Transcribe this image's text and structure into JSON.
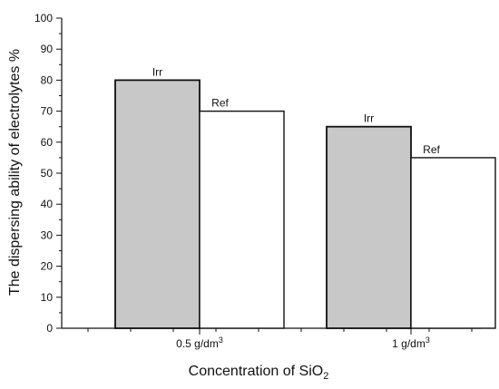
{
  "chart_data": {
    "type": "bar",
    "xlabel": "Concentration of SiO",
    "xlabel_sub": "2",
    "ylabel": "The dispersing ability  of electrolytes %",
    "ylim": [
      0,
      100
    ],
    "yticks": [
      0,
      10,
      20,
      30,
      40,
      50,
      60,
      70,
      80,
      90,
      100
    ],
    "categories": [
      {
        "label": "0.5 g/dm",
        "sup": "3"
      },
      {
        "label": "1 g/dm",
        "sup": "3"
      }
    ],
    "series": [
      {
        "name": "Irr",
        "values": [
          80,
          65
        ],
        "color": "#c8c8c8"
      },
      {
        "name": "Ref",
        "values": [
          70,
          55
        ],
        "color": "#ffffff"
      }
    ],
    "grid": false,
    "legend": "none"
  }
}
